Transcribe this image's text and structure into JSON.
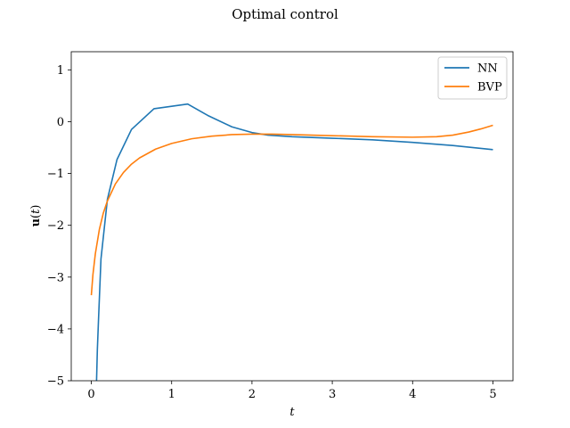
{
  "chart_data": {
    "type": "line",
    "title": "Optimal control",
    "xlabel": "t",
    "ylabel": "u(t)",
    "xlim": [
      -0.25,
      5.25
    ],
    "ylim": [
      -5,
      1.35
    ],
    "xticks": [
      0,
      1,
      2,
      3,
      4,
      5
    ],
    "yticks": [
      1,
      0,
      -1,
      -2,
      -3,
      -4,
      -5
    ],
    "xtick_labels": [
      "0",
      "1",
      "2",
      "3",
      "4",
      "5"
    ],
    "ytick_labels": [
      "1",
      "0",
      "−1",
      "−2",
      "−3",
      "−4",
      "−5"
    ],
    "grid": false,
    "legend_position": "top-right",
    "series": [
      {
        "name": "NN",
        "color": "#1f77b4",
        "x": [
          0.065,
          0.075,
          0.09,
          0.12,
          0.2,
          0.32,
          0.5,
          0.78,
          1.2,
          1.45,
          1.75,
          2.0,
          2.2,
          2.5,
          3.0,
          3.5,
          4.0,
          4.5,
          5.0
        ],
        "y": [
          -5.0,
          -4.4,
          -3.8,
          -2.65,
          -1.5,
          -0.73,
          -0.15,
          0.25,
          0.34,
          0.12,
          -0.1,
          -0.21,
          -0.26,
          -0.29,
          -0.32,
          -0.35,
          -0.4,
          -0.46,
          -0.54
        ]
      },
      {
        "name": "BVP",
        "color": "#ff7f0e",
        "x": [
          0.0,
          0.02,
          0.05,
          0.1,
          0.15,
          0.2,
          0.3,
          0.4,
          0.5,
          0.6,
          0.8,
          1.0,
          1.25,
          1.5,
          1.75,
          2.0,
          2.25,
          2.5,
          3.0,
          3.5,
          4.0,
          4.3,
          4.5,
          4.7,
          4.85,
          5.0
        ],
        "y": [
          -3.35,
          -2.95,
          -2.55,
          -2.08,
          -1.76,
          -1.53,
          -1.2,
          -0.98,
          -0.82,
          -0.7,
          -0.53,
          -0.42,
          -0.33,
          -0.28,
          -0.25,
          -0.24,
          -0.24,
          -0.25,
          -0.27,
          -0.29,
          -0.3,
          -0.29,
          -0.26,
          -0.2,
          -0.14,
          -0.07
        ]
      }
    ]
  }
}
